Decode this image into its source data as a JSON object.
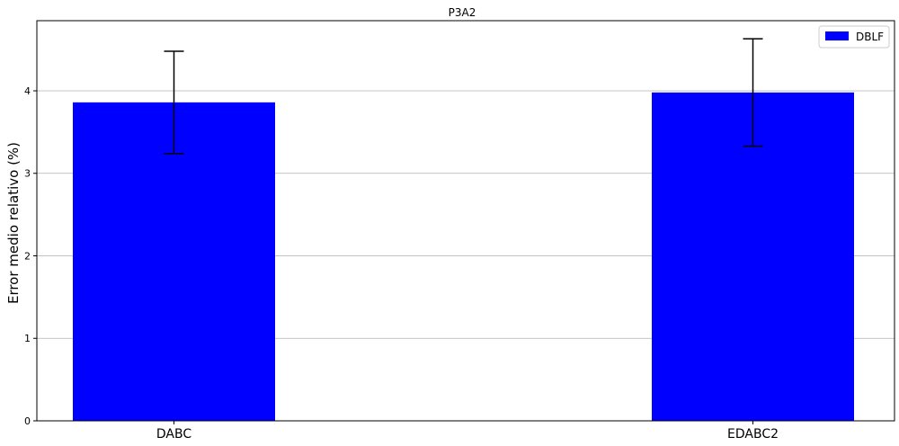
{
  "chart_data": {
    "type": "bar",
    "title": "P3A2",
    "xlabel": "",
    "ylabel": "Error medio relativo (%)",
    "categories": [
      "DABC",
      "EDABC2"
    ],
    "series": [
      {
        "name": "DBLF",
        "values": [
          3.86,
          3.98
        ],
        "errors": [
          0.62,
          0.65
        ],
        "color": "#0000ff"
      }
    ],
    "ylim": [
      0,
      4.85
    ],
    "yticks": [
      0,
      1,
      2,
      3,
      4
    ],
    "ytick_labels": [
      "0",
      "1",
      "2",
      "3",
      "4"
    ],
    "grid": "y",
    "legend": "top-right",
    "errorbar_color": "#000000"
  }
}
